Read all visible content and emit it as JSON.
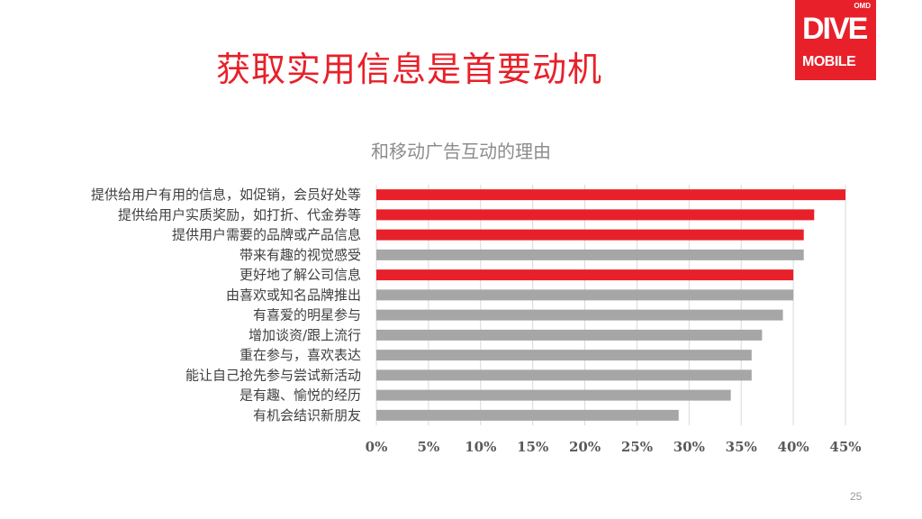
{
  "slide": {
    "title": "获取实用信息是首要动机",
    "page_number": "25"
  },
  "logo": {
    "top_text": "OMD",
    "main_text": "DIVE",
    "bottom_text": "MOBILE"
  },
  "colors": {
    "highlight": "#e8202a",
    "normal": "#a6a6a6",
    "title": "#e8202a"
  },
  "chart_data": {
    "type": "bar",
    "orientation": "horizontal",
    "title": "和移动广告互动的理由",
    "categories": [
      "提供给用户有用的信息，如促销，会员好处等",
      "提供给用户实质奖励，如打折、代金券等",
      "提供用户需要的品牌或产品信息",
      "带来有趣的视觉感受",
      "更好地了解公司信息",
      "由喜欢或知名品牌推出",
      "有喜爱的明星参与",
      "增加谈资/跟上流行",
      "重在参与，喜欢表达",
      "能让自己抢先参与尝试新活动",
      "是有趣、愉悦的经历",
      "有机会结识新朋友"
    ],
    "values": [
      45,
      42,
      41,
      41,
      40,
      40,
      39,
      37,
      36,
      36,
      34,
      29
    ],
    "highlighted": [
      true,
      true,
      true,
      false,
      true,
      false,
      false,
      false,
      false,
      false,
      false,
      false
    ],
    "xlim": [
      0,
      45
    ],
    "xticks": [
      "0%",
      "5%",
      "10%",
      "15%",
      "20%",
      "25%",
      "30%",
      "35%",
      "40%",
      "45%"
    ],
    "value_unit": "%",
    "grid": true
  }
}
